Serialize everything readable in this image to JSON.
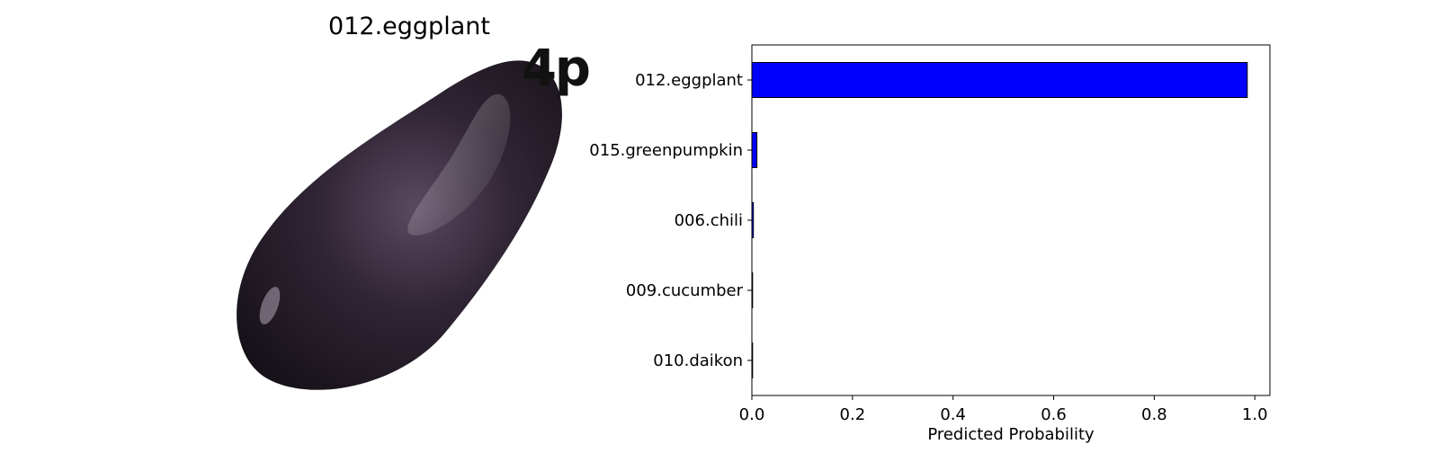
{
  "image_panel": {
    "title": "012.eggplant",
    "watermark_text": "4p",
    "icon": "eggplant-photo"
  },
  "chart_data": {
    "type": "bar",
    "orientation": "horizontal",
    "categories": [
      "012.eggplant",
      "015.greenpumpkin",
      "006.chili",
      "009.cucumber",
      "010.daikon"
    ],
    "values": [
      0.985,
      0.01,
      0.003,
      0.001,
      0.001
    ],
    "xlabel": "Predicted Probability",
    "ylabel": "",
    "title": "",
    "xlim": [
      0,
      1.03
    ],
    "xticks": [
      "0.0",
      "0.2",
      "0.4",
      "0.6",
      "0.8",
      "1.0"
    ],
    "grid": false,
    "bar_color": "#0000ff",
    "bar_edge_color": "#000000"
  }
}
